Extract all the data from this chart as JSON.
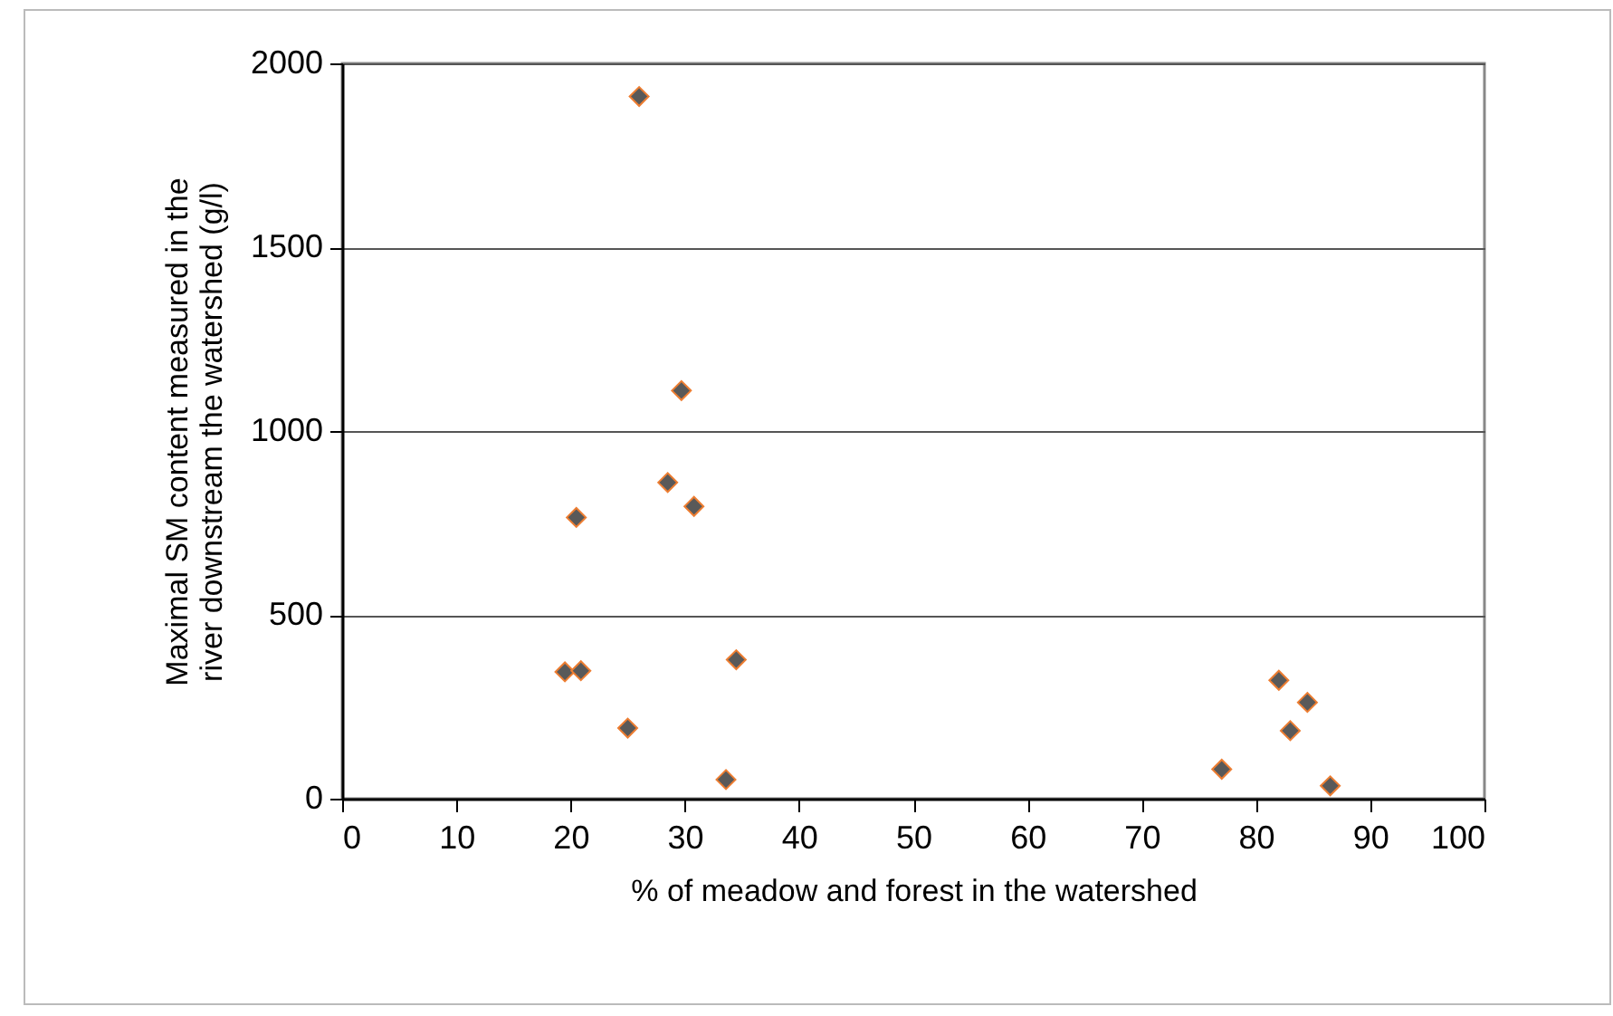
{
  "chart_data": {
    "type": "scatter",
    "xlabel": "% of meadow and forest in the watershed",
    "ylabel": "Maximal SM content measured in the river downstream the watershed (g/l)",
    "x": [
      26,
      29.7,
      28.5,
      30.8,
      20.5,
      19.5,
      20.9,
      34.5,
      25,
      33.6,
      82,
      84.5,
      83,
      77,
      86.5
    ],
    "series": [
      {
        "color": "#595959",
        "values": [
          1910,
          1110,
          860,
          795,
          765,
          345,
          348,
          378,
          192,
          52,
          322,
          262,
          185,
          80,
          35
        ]
      }
    ],
    "xlim": [
      0,
      100
    ],
    "xticks": [
      0,
      10,
      20,
      30,
      40,
      50,
      60,
      70,
      80,
      90,
      100
    ],
    "ylim": [
      0,
      2000
    ],
    "yticks": [
      0,
      500,
      1000,
      1500,
      2000
    ],
    "grid": "y",
    "marker": "diamond",
    "legend": false
  }
}
